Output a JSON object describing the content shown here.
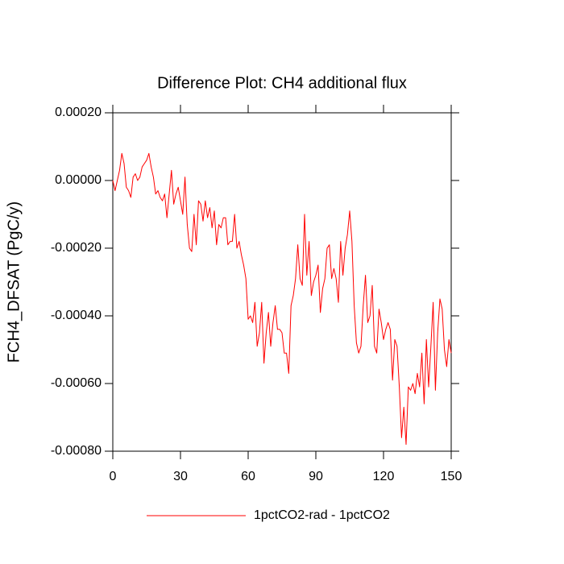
{
  "chart_data": {
    "type": "line",
    "title": "Difference Plot: CH4 additional flux",
    "ylabel": "FCH4_DFSAT  (PgC/y)",
    "x": [
      0,
      1,
      2,
      3,
      4,
      5,
      6,
      7,
      8,
      9,
      10,
      11,
      12,
      13,
      14,
      15,
      16,
      17,
      18,
      19,
      20,
      21,
      22,
      23,
      24,
      25,
      26,
      27,
      28,
      29,
      30,
      31,
      32,
      33,
      34,
      35,
      36,
      37,
      38,
      39,
      40,
      41,
      42,
      43,
      44,
      45,
      46,
      47,
      48,
      49,
      50,
      51,
      52,
      53,
      54,
      55,
      56,
      57,
      58,
      59,
      60,
      61,
      62,
      63,
      64,
      65,
      66,
      67,
      68,
      69,
      70,
      71,
      72,
      73,
      74,
      75,
      76,
      77,
      78,
      79,
      80,
      81,
      82,
      83,
      84,
      85,
      86,
      87,
      88,
      89,
      90,
      91,
      92,
      93,
      94,
      95,
      96,
      97,
      98,
      99,
      100,
      101,
      102,
      103,
      104,
      105,
      106,
      107,
      108,
      109,
      110,
      111,
      112,
      113,
      114,
      115,
      116,
      117,
      118,
      119,
      120,
      121,
      122,
      123,
      124,
      125,
      126,
      127,
      128,
      129,
      130,
      131,
      132,
      133,
      134,
      135,
      136,
      137,
      138,
      139,
      140,
      141,
      142,
      143,
      144,
      145,
      146,
      147,
      148,
      149,
      150
    ],
    "series": [
      {
        "name": "1pctCO2-rad - 1pctCO2",
        "color": "#ff0000",
        "values": [
          0.0,
          -3e-05,
          0.0,
          3e-05,
          8e-05,
          5e-05,
          -2e-05,
          -3e-05,
          -5e-05,
          1e-05,
          2e-05,
          0.0,
          1e-05,
          4e-05,
          5e-05,
          6e-05,
          8e-05,
          4e-05,
          1e-05,
          -4e-05,
          -3e-05,
          -5e-05,
          -6e-05,
          -4e-05,
          -0.00011,
          -4e-05,
          3e-05,
          -7e-05,
          -4e-05,
          -2e-05,
          -6e-05,
          -0.0001,
          1e-05,
          -0.00013,
          -0.0002,
          -0.00021,
          -0.0001,
          -0.00019,
          -6e-05,
          -7e-05,
          -0.00012,
          -6e-05,
          -0.00011,
          -8e-05,
          -0.00014,
          -9e-05,
          -0.00019,
          -0.00013,
          -0.00014,
          -0.00011,
          -0.00011,
          -0.00019,
          -0.00018,
          -0.00018,
          -0.0001,
          -0.0002,
          -0.00018,
          -0.00022,
          -0.00025,
          -0.00029,
          -0.00041,
          -0.0004,
          -0.00042,
          -0.00036,
          -0.00049,
          -0.00045,
          -0.00036,
          -0.00054,
          -0.00045,
          -0.00039,
          -0.00049,
          -0.00042,
          -0.00037,
          -0.00044,
          -0.00044,
          -0.00045,
          -0.00051,
          -0.00051,
          -0.00057,
          -0.00037,
          -0.00034,
          -0.00029,
          -0.00019,
          -0.00029,
          -0.00031,
          -0.0001,
          -0.00028,
          -0.00018,
          -0.00034,
          -0.0003,
          -0.00028,
          -0.00025,
          -0.00039,
          -0.00032,
          -0.00029,
          -0.0002,
          -0.00019,
          -0.00029,
          -0.00026,
          -0.00029,
          -0.00036,
          -0.00018,
          -0.00028,
          -0.0002,
          -0.00016,
          -9e-05,
          -0.00018,
          -0.00037,
          -0.00048,
          -0.00051,
          -0.00049,
          -0.00037,
          -0.00028,
          -0.00042,
          -0.0004,
          -0.00031,
          -0.00049,
          -0.00051,
          -0.00038,
          -0.00042,
          -0.00047,
          -0.00044,
          -0.00042,
          -0.00044,
          -0.00059,
          -0.00047,
          -0.00049,
          -0.00061,
          -0.00076,
          -0.00067,
          -0.00078,
          -0.00061,
          -0.00062,
          -0.0006,
          -0.00063,
          -0.00057,
          -0.00061,
          -0.00051,
          -0.00066,
          -0.00047,
          -0.00061,
          -0.00049,
          -0.00036,
          -0.00062,
          -0.00045,
          -0.00035,
          -0.00038,
          -0.0005,
          -0.00055,
          -0.00047,
          -0.00051
        ]
      }
    ],
    "xlim": [
      0,
      150
    ],
    "xticks": [
      0,
      30,
      60,
      90,
      120,
      150
    ],
    "ylim": [
      -0.0008,
      0.0002
    ],
    "yticks": [
      {
        "value": 0.0002,
        "label": "0.00020"
      },
      {
        "value": 0,
        "label": "0.00000"
      },
      {
        "value": -0.0002,
        "label": "-0.00020"
      },
      {
        "value": -0.0004,
        "label": "-0.00040"
      },
      {
        "value": -0.0006,
        "label": "-0.00060"
      },
      {
        "value": -0.0008,
        "label": "-0.00080"
      }
    ]
  }
}
